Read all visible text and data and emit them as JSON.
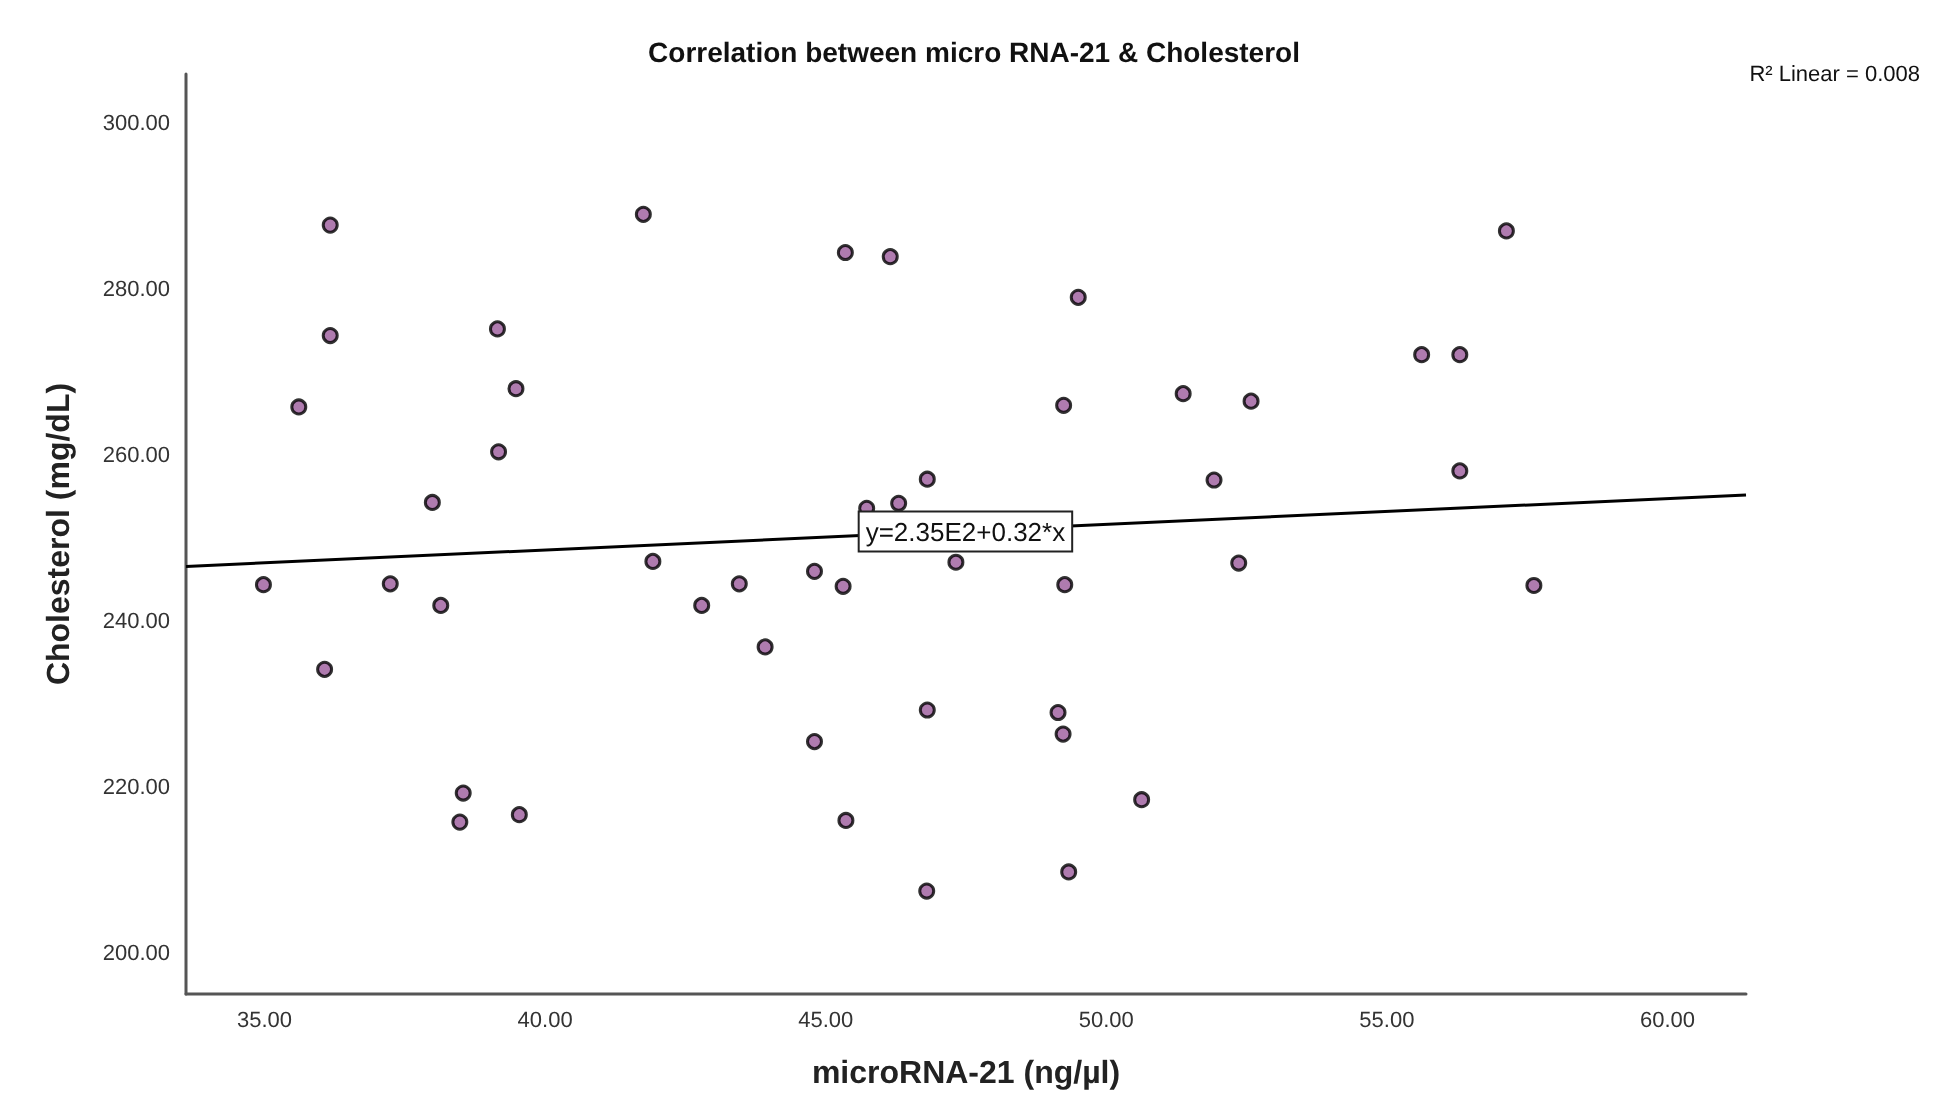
{
  "chart_data": {
    "type": "scatter",
    "title": "Correlation between micro RNA-21 & Cholesterol",
    "xlabel": "microRNA-21 (ng/µl)",
    "ylabel": "Cholesterol (mg/dL)",
    "xlim": [
      33.6,
      61.4
    ],
    "ylim": [
      195.2,
      306
    ],
    "xticks": [
      {
        "value": 35,
        "label": "35.00"
      },
      {
        "value": 40,
        "label": "40.00"
      },
      {
        "value": 45,
        "label": "45.00"
      },
      {
        "value": 50,
        "label": "50.00"
      },
      {
        "value": 55,
        "label": "55.00"
      },
      {
        "value": 60,
        "label": "60.00"
      }
    ],
    "yticks": [
      {
        "value": 200,
        "label": "200.00"
      },
      {
        "value": 220,
        "label": "220.00"
      },
      {
        "value": 240,
        "label": "240.00"
      },
      {
        "value": 260,
        "label": "260.00"
      },
      {
        "value": 280,
        "label": "280.00"
      },
      {
        "value": 300,
        "label": "300.00"
      }
    ],
    "grid": false,
    "marker": "circle",
    "series": [
      {
        "color": "#9b5a9b",
        "x": [
          36.17,
          41.75,
          36.17,
          39.15,
          35.61,
          39.48,
          39.17,
          37.99,
          41.92,
          34.98,
          37.24,
          38.14,
          42.79,
          43.46,
          43.92,
          36.07,
          38.54,
          38.48,
          39.54,
          45.35,
          46.15,
          49.5,
          49.24,
          51.37,
          52.58,
          46.81,
          51.92,
          46.3,
          45.73,
          47.32,
          44.8,
          45.31,
          49.26,
          52.36,
          46.81,
          49.14,
          49.23,
          44.8,
          50.63,
          45.36,
          49.33,
          46.8,
          57.13,
          55.62,
          56.3,
          56.3,
          57.62
        ],
        "values": [
          287.8,
          289.1,
          274.5,
          275.3,
          265.9,
          268.1,
          260.5,
          254.4,
          247.3,
          244.5,
          244.6,
          242,
          242,
          244.6,
          237,
          234.3,
          219.4,
          215.9,
          216.8,
          284.5,
          284,
          279.1,
          266.1,
          267.5,
          266.6,
          257.2,
          257.1,
          254.3,
          253.7,
          247.2,
          246.1,
          244.3,
          244.5,
          247.1,
          229.4,
          229.1,
          226.5,
          225.6,
          218.6,
          216.1,
          209.9,
          207.6,
          287.1,
          272.2,
          272.2,
          258.2,
          244.4
        ]
      },
      {
        "type": "line",
        "color": "#000000",
        "x": [
          33.6,
          61.4
        ],
        "values": [
          246.7,
          255.3
        ],
        "marker": "none",
        "line_style": "solid"
      }
    ],
    "annotations": [
      "R² Linear = 0.008",
      {
        "text": "y=2.35E2+0.32*x",
        "x": 47.49,
        "y": 250.9
      }
    ]
  }
}
